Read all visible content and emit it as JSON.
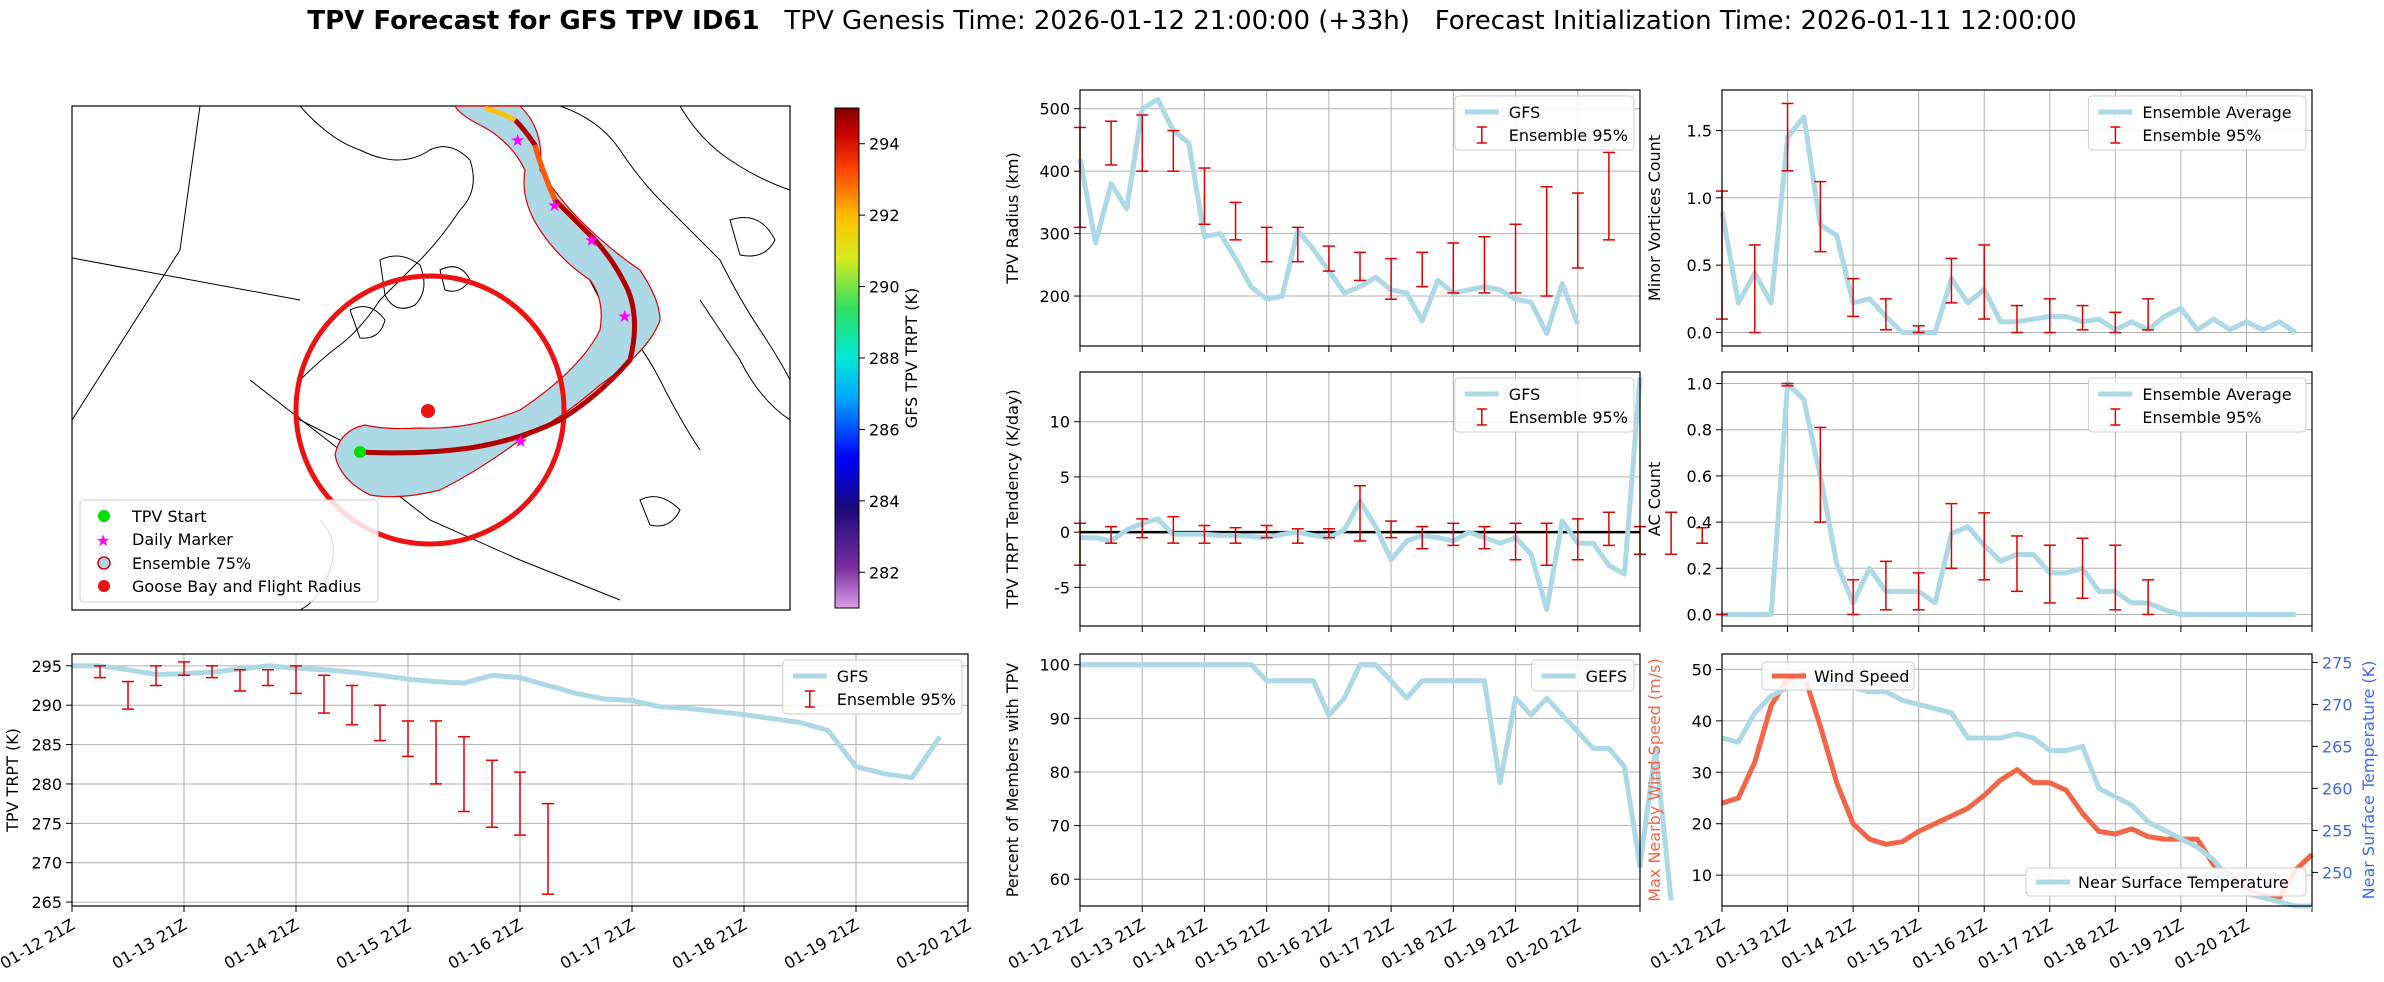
{
  "title": {
    "bold": "TPV Forecast for GFS TPV ID61",
    "genesis": "TPV Genesis Time: 2026-01-12 21:00:00 (+33h)",
    "init": "Forecast Initialization Time: 2026-01-11 12:00:00"
  },
  "map": {
    "legend": [
      "TPV Start",
      "Daily Marker",
      "Ensemble 75%",
      "Goose Bay and Flight Radius"
    ],
    "colorbar_label": "GFS TPV TRPT (K)",
    "colorbar_ticks": [
      "282",
      "284",
      "286",
      "288",
      "290",
      "292",
      "294"
    ],
    "colorbar_range": [
      281,
      295
    ]
  },
  "chart_data": [
    {
      "id": "radius",
      "type": "line",
      "ylabel": "TPV Radius (km)",
      "ylim": [
        120,
        530
      ],
      "yticks": [
        200,
        300,
        400,
        500
      ],
      "legend": [
        "GFS",
        "Ensemble 95%"
      ],
      "series": [
        {
          "name": "GFS",
          "values": [
            420,
            285,
            380,
            340,
            500,
            515,
            465,
            445,
            295,
            300,
            260,
            215,
            195,
            200,
            305,
            275,
            240,
            205,
            215,
            230,
            210,
            205,
            160,
            225,
            205,
            210,
            215,
            210,
            195,
            190,
            140,
            220,
            155
          ]
        }
      ],
      "errorbars": [
        [
          0,
          310,
          470
        ],
        [
          2,
          410,
          480
        ],
        [
          4,
          400,
          490
        ],
        [
          6,
          400,
          465
        ],
        [
          8,
          315,
          405
        ],
        [
          10,
          290,
          350
        ],
        [
          12,
          255,
          310
        ],
        [
          14,
          255,
          310
        ],
        [
          16,
          240,
          280
        ],
        [
          18,
          225,
          270
        ],
        [
          20,
          195,
          260
        ],
        [
          22,
          215,
          270
        ],
        [
          24,
          205,
          285
        ],
        [
          26,
          205,
          295
        ],
        [
          28,
          205,
          315
        ],
        [
          30,
          200,
          375
        ],
        [
          32,
          245,
          365
        ],
        [
          34,
          290,
          430
        ]
      ]
    },
    {
      "id": "tendency",
      "type": "line",
      "ylabel": "TPV TRPT Tendency (K/day)",
      "ylim": [
        -8.5,
        14.5
      ],
      "yticks": [
        -5,
        0,
        5,
        10
      ],
      "legend": [
        "GFS",
        "Ensemble 95%"
      ],
      "series": [
        {
          "name": "GFS",
          "values": [
            -0.5,
            -0.5,
            -0.8,
            0.2,
            0.8,
            1.2,
            -0.2,
            -0.2,
            -0.2,
            -0.3,
            -0.3,
            -0.4,
            -0.5,
            -0.2,
            0,
            -0.3,
            -0.5,
            0.2,
            2.8,
            0.5,
            -2.5,
            -0.8,
            -0.3,
            -0.5,
            -0.8,
            0,
            -0.5,
            -1,
            -0.5,
            -2,
            -7,
            1,
            -1,
            -1,
            -3,
            -3.8,
            14
          ]
        }
      ],
      "errorbars": [
        [
          0,
          -3,
          0.8
        ],
        [
          2,
          -1,
          0.5
        ],
        [
          4,
          -0.5,
          1.2
        ],
        [
          6,
          -1,
          1.4
        ],
        [
          8,
          -1,
          0.6
        ],
        [
          10,
          -1,
          0.4
        ],
        [
          12,
          -0.5,
          0.6
        ],
        [
          14,
          -1,
          0.3
        ],
        [
          16,
          -0.5,
          0.3
        ],
        [
          18,
          -0.8,
          4.2
        ],
        [
          20,
          -0.5,
          1
        ],
        [
          22,
          -1.5,
          0.5
        ],
        [
          24,
          -1.2,
          0.8
        ],
        [
          26,
          -1.5,
          0.5
        ],
        [
          28,
          -2.5,
          0.8
        ],
        [
          30,
          -3,
          0.8
        ],
        [
          32,
          -2.5,
          1.2
        ],
        [
          34,
          -1.2,
          1.8
        ],
        [
          36,
          -2,
          0.5
        ],
        [
          38,
          -2,
          1.8
        ],
        [
          40,
          -1,
          0.4
        ],
        [
          42,
          -2,
          1.5
        ]
      ]
    },
    {
      "id": "trpt",
      "type": "line",
      "ylabel": "TPV TRPT (K)",
      "ylim": [
        264.5,
        296.5
      ],
      "yticks": [
        265,
        270,
        275,
        280,
        285,
        290,
        295
      ],
      "xticks": [
        "01-12 21Z",
        "01-13 21Z",
        "01-14 21Z",
        "01-15 21Z",
        "01-16 21Z",
        "01-17 21Z",
        "01-18 21Z",
        "01-19 21Z",
        "01-20 21Z"
      ],
      "legend": [
        "GFS",
        "Ensemble 95%"
      ],
      "series": [
        {
          "name": "GFS",
          "values": [
            295,
            295,
            294.5,
            293.9,
            294,
            294.2,
            294.6,
            295,
            294.7,
            294.5,
            294.2,
            293.8,
            293.3,
            293,
            292.8,
            293.8,
            293.5,
            292.5,
            291.5,
            290.8,
            290.6,
            289.8,
            289.6,
            289.2,
            288.8,
            288.3,
            287.8,
            286.8,
            282.2,
            281.3,
            280.8,
            286
          ]
        }
      ],
      "errorbars": [
        [
          1,
          293.5,
          295
        ],
        [
          2,
          289.5,
          293
        ],
        [
          3,
          292.5,
          295
        ],
        [
          4,
          293.8,
          295.5
        ],
        [
          5,
          293.5,
          295
        ],
        [
          6,
          291.8,
          294.5
        ],
        [
          7,
          292.5,
          294.5
        ],
        [
          8,
          291.5,
          295
        ],
        [
          9,
          289,
          293.8
        ],
        [
          10,
          287.5,
          292.5
        ],
        [
          11,
          285.5,
          290
        ],
        [
          12,
          283.5,
          288
        ],
        [
          13,
          280,
          288
        ],
        [
          14,
          276.5,
          286
        ],
        [
          15,
          274.5,
          283
        ],
        [
          16,
          273.5,
          281.5
        ],
        [
          17,
          266,
          277.5
        ]
      ]
    },
    {
      "id": "percent",
      "type": "line",
      "ylabel": "Percent of Members with TPV",
      "ylim": [
        55,
        102
      ],
      "yticks": [
        60,
        70,
        80,
        90,
        100
      ],
      "xticks": [
        "01-12 21Z",
        "01-13 21Z",
        "01-14 21Z",
        "01-15 21Z",
        "01-16 21Z",
        "01-17 21Z",
        "01-18 21Z",
        "01-19 21Z",
        "01-20 21Z"
      ],
      "legend": [
        "GEFS"
      ],
      "series": [
        {
          "name": "GEFS",
          "values": [
            100,
            100,
            100,
            100,
            100,
            100,
            100,
            100,
            100,
            100,
            100,
            100,
            97,
            97,
            97,
            97,
            90.6,
            93.8,
            100,
            100,
            97,
            93.8,
            97,
            97,
            97,
            97,
            97,
            78,
            93.8,
            90.6,
            93.8,
            90.6,
            87.5,
            84.4,
            84.4,
            81,
            62.5,
            84.4,
            56
          ]
        }
      ]
    },
    {
      "id": "minor",
      "type": "line",
      "ylabel": "Minor Vortices Count",
      "ylim": [
        -0.1,
        1.8
      ],
      "yticks": [
        0.0,
        0.5,
        1.0,
        1.5
      ],
      "legend": [
        "Ensemble Average",
        "Ensemble 95%"
      ],
      "series": [
        {
          "name": "Ensemble Average",
          "values": [
            0.9,
            0.22,
            0.44,
            0.22,
            1.45,
            1.6,
            0.8,
            0.72,
            0.22,
            0.25,
            0.12,
            0,
            0,
            0,
            0.4,
            0.22,
            0.32,
            0.08,
            0.08,
            0.1,
            0.12,
            0.12,
            0.08,
            0.1,
            0.02,
            0.08,
            0.02,
            0.12,
            0.18,
            0.02,
            0.1,
            0.02,
            0.08,
            0.02,
            0.08,
            0
          ]
        }
      ],
      "errorbars": [
        [
          0,
          0.1,
          1.05
        ],
        [
          2,
          0,
          0.65
        ],
        [
          4,
          1.2,
          1.7
        ],
        [
          6,
          0.6,
          1.12
        ],
        [
          8,
          0.12,
          0.4
        ],
        [
          10,
          0.02,
          0.25
        ],
        [
          12,
          0,
          0.05
        ],
        [
          14,
          0.22,
          0.55
        ],
        [
          16,
          0.1,
          0.65
        ],
        [
          18,
          0,
          0.2
        ],
        [
          20,
          0,
          0.25
        ],
        [
          22,
          0.02,
          0.2
        ],
        [
          24,
          0,
          0.15
        ],
        [
          26,
          0.02,
          0.25
        ]
      ]
    },
    {
      "id": "ac",
      "type": "line",
      "ylabel": "AC Count",
      "ylim": [
        -0.05,
        1.05
      ],
      "yticks": [
        0.0,
        0.2,
        0.4,
        0.6,
        0.8,
        1.0
      ],
      "legend": [
        "Ensemble Average",
        "Ensemble 95%"
      ],
      "series": [
        {
          "name": "Ensemble Average",
          "values": [
            0,
            0,
            0,
            0,
            1,
            0.93,
            0.6,
            0.22,
            0.05,
            0.2,
            0.1,
            0.1,
            0.1,
            0.05,
            0.35,
            0.38,
            0.3,
            0.23,
            0.26,
            0.26,
            0.18,
            0.18,
            0.2,
            0.1,
            0.1,
            0.05,
            0.05,
            0.02,
            0,
            0,
            0,
            0,
            0,
            0,
            0,
            0
          ]
        }
      ],
      "errorbars": [
        [
          0,
          0,
          0
        ],
        [
          4,
          0.99,
          1
        ],
        [
          6,
          0.4,
          0.81
        ],
        [
          8,
          0,
          0.15
        ],
        [
          10,
          0.02,
          0.23
        ],
        [
          12,
          0.02,
          0.18
        ],
        [
          14,
          0.2,
          0.48
        ],
        [
          16,
          0.15,
          0.44
        ],
        [
          18,
          0.1,
          0.34
        ],
        [
          20,
          0.05,
          0.3
        ],
        [
          22,
          0.07,
          0.33
        ],
        [
          24,
          0.02,
          0.3
        ],
        [
          26,
          0,
          0.15
        ]
      ]
    },
    {
      "id": "wind",
      "type": "line",
      "ylabel": "Max Nearby Wind Speed (m/s)",
      "ylabel2": "Near Surface Temperature (K)",
      "ylim": [
        4,
        53
      ],
      "ylim2": [
        246,
        276
      ],
      "yticks": [
        10,
        20,
        30,
        40,
        50
      ],
      "yticks2": [
        250,
        255,
        260,
        265,
        270,
        275
      ],
      "xticks": [
        "01-12 21Z",
        "01-13 21Z",
        "01-14 21Z",
        "01-15 21Z",
        "01-16 21Z",
        "01-17 21Z",
        "01-18 21Z",
        "01-19 21Z",
        "01-20 21Z"
      ],
      "legend": [
        "Wind Speed",
        "Near Surface Temperature"
      ],
      "series": [
        {
          "name": "Wind Speed",
          "values": [
            24,
            25,
            32,
            43,
            48,
            49,
            39,
            28,
            20,
            17,
            16,
            16.5,
            18.5,
            20,
            21.5,
            23,
            25.5,
            28.5,
            30.5,
            28,
            28,
            26.5,
            22,
            18.5,
            18,
            19,
            17.5,
            17,
            17,
            17,
            12,
            10,
            7,
            6,
            5.5,
            11,
            14
          ]
        },
        {
          "name": "Near Surface Temperature",
          "values": [
            266,
            265.5,
            269,
            271,
            272,
            273,
            273,
            272,
            272,
            271.5,
            271.5,
            270.5,
            270,
            269.5,
            269,
            266,
            266,
            266,
            266.5,
            266,
            264.5,
            264.5,
            265,
            260,
            259,
            258,
            256,
            255,
            254,
            253,
            251.5,
            249,
            247.5,
            247,
            246.5,
            246,
            246
          ]
        }
      ]
    }
  ]
}
